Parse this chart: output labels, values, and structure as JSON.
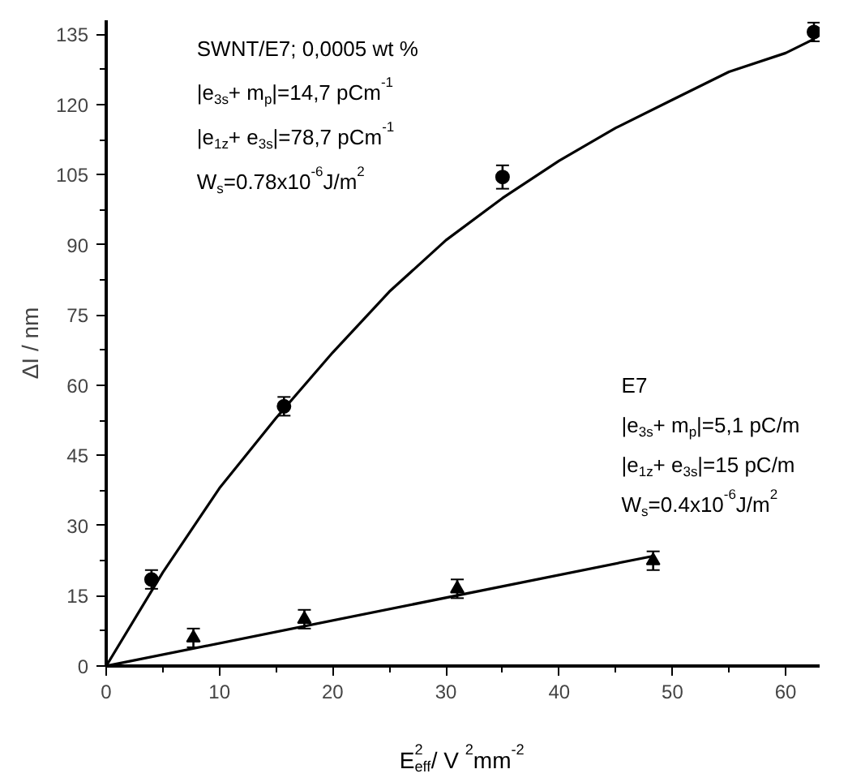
{
  "chart_data": {
    "type": "scatter",
    "xlabel": "E$_{eff}$$^{2}$ / V$^{2}$mm$^{-2}$",
    "ylabel": "ΔI / nm",
    "xlim": [
      0,
      63
    ],
    "ylim": [
      0,
      138
    ],
    "xticks": [
      0,
      10,
      20,
      30,
      40,
      50,
      60
    ],
    "yticks": [
      0,
      15,
      30,
      45,
      60,
      75,
      90,
      105,
      120,
      135
    ],
    "grid": false,
    "series": [
      {
        "type": "scatter",
        "marker": "circle",
        "color": "#000000",
        "x": [
          4,
          15.7,
          35,
          62.5
        ],
        "values": [
          18.5,
          55.5,
          104.5,
          135.5
        ],
        "errors": [
          2,
          2,
          2.5,
          2
        ]
      },
      {
        "type": "line",
        "marker": "none",
        "color": "#000000",
        "x": [
          0,
          5,
          10,
          15,
          20,
          25,
          30,
          35,
          40,
          45,
          50,
          55,
          60,
          62.5
        ],
        "values": [
          0,
          20,
          38,
          53,
          67,
          80,
          91,
          100,
          108,
          115,
          121,
          127,
          131,
          134
        ]
      },
      {
        "type": "scatter",
        "marker": "triangle",
        "color": "#000000",
        "x": [
          7.7,
          17.5,
          31,
          48.3
        ],
        "values": [
          6,
          10,
          16.5,
          22.5
        ],
        "errors": [
          2,
          2,
          2,
          2
        ]
      },
      {
        "type": "line",
        "marker": "none",
        "color": "#000000",
        "x": [
          0,
          48.3
        ],
        "values": [
          0,
          23.5
        ]
      }
    ],
    "annotations": [
      "SWNT/E7; 0,0005 wt %",
      "|e$_{3s}$+ m$_{p}$|=14,7 pCm$^{-1}$",
      "|e$_{1z}$+ e$_{3s}$|=78,7 pCm$^{-1}$",
      "W$_{s}$=0.78x10$^{-6}$J/m$^{2}$",
      "E7",
      "|e$_{3s}$+ m$_{p}$|=5,1 pC/m",
      "|e$_{1z}$+ e$_{3s}$|=15 pC/m",
      "W$_{s}$=0.4x10$^{-6}$J/m$^{2}$"
    ]
  }
}
